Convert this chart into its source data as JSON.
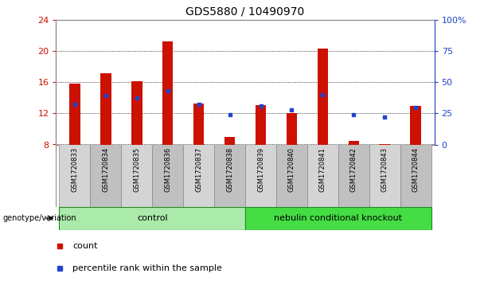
{
  "title": "GDS5880 / 10490970",
  "samples": [
    "GSM1720833",
    "GSM1720834",
    "GSM1720835",
    "GSM1720836",
    "GSM1720837",
    "GSM1720838",
    "GSM1720839",
    "GSM1720840",
    "GSM1720841",
    "GSM1720842",
    "GSM1720843",
    "GSM1720844"
  ],
  "bar_tops": [
    15.8,
    17.2,
    16.2,
    21.3,
    13.3,
    9.0,
    13.1,
    12.1,
    20.4,
    8.5,
    8.1,
    13.0
  ],
  "bar_bottom": 8.0,
  "blue_y": [
    13.2,
    14.3,
    14.0,
    14.9,
    13.2,
    11.8,
    13.0,
    12.5,
    14.4,
    11.8,
    11.5,
    12.8
  ],
  "ylim_left": [
    8,
    24
  ],
  "yticks_left": [
    8,
    12,
    16,
    20,
    24
  ],
  "yticks_right": [
    0,
    25,
    50,
    75,
    100
  ],
  "ytick_labels_right": [
    "0",
    "25",
    "50",
    "75",
    "100%"
  ],
  "bar_color": "#cc1100",
  "blue_color": "#2244cc",
  "group_labels": [
    "control",
    "nebulin conditional knockout"
  ],
  "ctrl_indices": [
    0,
    5
  ],
  "nko_indices": [
    6,
    11
  ],
  "ctrl_color": "#aaeaaa",
  "nko_color": "#44dd44",
  "sample_col1": "#d4d4d4",
  "sample_col2": "#c0c0c0",
  "legend_items": [
    "count",
    "percentile rank within the sample"
  ],
  "bar_width": 0.35,
  "axis_color": "#cc1100",
  "right_axis_color": "#2244cc",
  "grid_color": "#000000"
}
